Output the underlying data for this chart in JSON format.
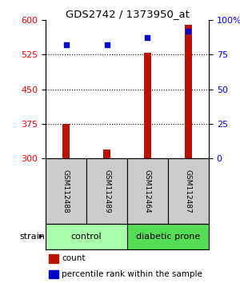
{
  "title": "GDS2742 / 1373950_at",
  "samples": [
    "GSM112488",
    "GSM112489",
    "GSM112464",
    "GSM112487"
  ],
  "counts": [
    375,
    320,
    528,
    590
  ],
  "percentiles": [
    82,
    82,
    87,
    92
  ],
  "ylim_left": [
    300,
    600
  ],
  "ylim_right": [
    0,
    100
  ],
  "yticks_left": [
    300,
    375,
    450,
    525,
    600
  ],
  "yticks_right": [
    0,
    25,
    50,
    75,
    100
  ],
  "yticklabels_right": [
    "0",
    "25",
    "50",
    "75",
    "100%"
  ],
  "bar_color": "#bb1100",
  "scatter_color": "#0000cc",
  "group_colors": [
    "#aaffaa",
    "#55dd55"
  ],
  "group_labels": [
    "control",
    "diabetic prone"
  ],
  "strain_label": "strain",
  "legend_items": [
    {
      "color": "#bb1100",
      "label": "count"
    },
    {
      "color": "#0000cc",
      "label": "percentile rank within the sample"
    }
  ],
  "sample_box_color": "#cccccc",
  "bar_width": 0.18
}
